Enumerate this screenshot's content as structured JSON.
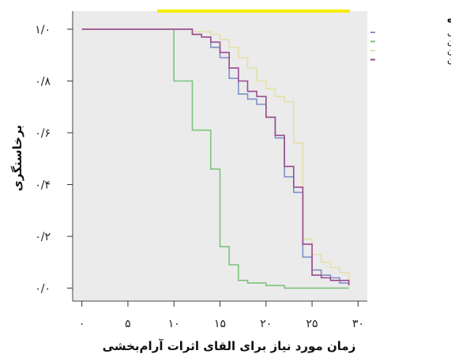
{
  "chart_data": {
    "type": "line",
    "step": true,
    "xlabel": "زمان مورد نیاز برای القای اثرات آرام‌بخشی",
    "ylabel": "برخاستگری",
    "xlim": [
      -1,
      31
    ],
    "ylim": [
      -0.05,
      1.07
    ],
    "x_ticks": [
      0,
      5,
      10,
      15,
      20,
      25,
      30
    ],
    "x_tick_labels": [
      "۰",
      "۵",
      "۱۰",
      "۱۵",
      "۲۰",
      "۲۵",
      "۳۰"
    ],
    "y_ticks": [
      0,
      0.2,
      0.4,
      0.6,
      0.8,
      1.0
    ],
    "y_tick_labels": [
      "۰/۰",
      "۰/۲",
      "۰/۴",
      "۰/۶",
      "۰/۸",
      "۱/۰"
    ],
    "grid": false,
    "plot_background": "#ebebeb",
    "legend_title": "گروه",
    "legend_position": "top-right",
    "series": [
      {
        "name": "هالوپریدول",
        "color": "#8090c8",
        "x": [
          0,
          10,
          12,
          13,
          14,
          15,
          16,
          17,
          18,
          19,
          20,
          21,
          22,
          23,
          24,
          25,
          26,
          27,
          28,
          29
        ],
        "y": [
          1.0,
          1.0,
          0.98,
          0.97,
          0.93,
          0.89,
          0.81,
          0.75,
          0.73,
          0.71,
          0.66,
          0.58,
          0.43,
          0.37,
          0.12,
          0.07,
          0.05,
          0.04,
          0.02,
          0.02
        ]
      },
      {
        "name": "پرومتازین",
        "color": "#7cc47c",
        "x": [
          0,
          10,
          12,
          14,
          15,
          16,
          17,
          18,
          20,
          22,
          24,
          26,
          28,
          29
        ],
        "y": [
          1.0,
          0.8,
          0.61,
          0.46,
          0.16,
          0.09,
          0.03,
          0.02,
          0.01,
          0.0,
          0.0,
          0.0,
          0.0,
          0.0
        ]
      },
      {
        "name": "کلرپرومازین",
        "color": "#e6e0aa",
        "x": [
          0,
          10,
          12,
          14,
          15,
          16,
          17,
          18,
          19,
          20,
          21,
          22,
          23,
          24,
          25,
          26,
          27,
          28,
          29
        ],
        "y": [
          1.0,
          1.0,
          0.99,
          0.98,
          0.96,
          0.93,
          0.89,
          0.85,
          0.8,
          0.77,
          0.74,
          0.72,
          0.56,
          0.19,
          0.13,
          0.1,
          0.08,
          0.06,
          0.02
        ]
      },
      {
        "name": "تری فلوپرازین",
        "color": "#9a4b8e",
        "x": [
          0,
          10,
          12,
          13,
          14,
          15,
          16,
          17,
          18,
          19,
          20,
          21,
          22,
          23,
          24,
          25,
          26,
          27,
          28,
          29
        ],
        "y": [
          1.0,
          1.0,
          0.98,
          0.97,
          0.95,
          0.91,
          0.85,
          0.8,
          0.76,
          0.74,
          0.66,
          0.59,
          0.47,
          0.39,
          0.17,
          0.05,
          0.04,
          0.03,
          0.03,
          0.01
        ]
      }
    ]
  }
}
